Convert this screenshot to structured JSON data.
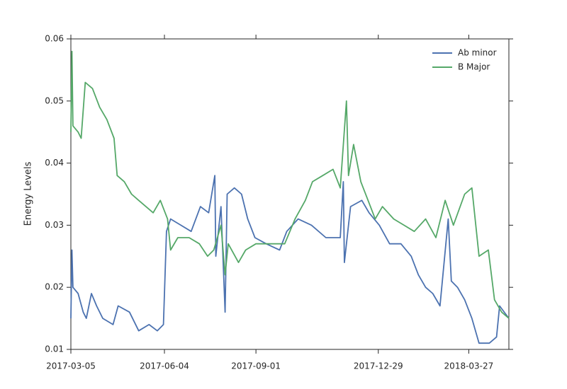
{
  "chart_data": {
    "type": "line",
    "ylabel": "Energy Levels",
    "xlim": [
      "2017-03-05",
      "2018-05-05"
    ],
    "xticks": [
      "2017-03-05",
      "2017-06-04",
      "2017-09-01",
      "2017-12-29",
      "2018-03-27"
    ],
    "ylim": [
      0.01,
      0.06
    ],
    "yticks": [
      0.01,
      0.02,
      0.03,
      0.04,
      0.05,
      0.06
    ],
    "legend": "upper right",
    "series": [
      {
        "name": "Ab minor",
        "color": "#4c72b0",
        "x": [
          "2017-03-05",
          "2017-03-06",
          "2017-03-07",
          "2017-03-12",
          "2017-03-17",
          "2017-03-20",
          "2017-03-25",
          "2017-03-30",
          "2017-04-05",
          "2017-04-15",
          "2017-04-20",
          "2017-05-01",
          "2017-05-10",
          "2017-05-20",
          "2017-05-28",
          "2017-06-03",
          "2017-06-06",
          "2017-06-10",
          "2017-06-20",
          "2017-06-30",
          "2017-07-09",
          "2017-07-17",
          "2017-07-23",
          "2017-07-24",
          "2017-07-29",
          "2017-08-02",
          "2017-08-04",
          "2017-08-11",
          "2017-08-18",
          "2017-08-24",
          "2017-08-31",
          "2017-09-11",
          "2017-09-24",
          "2017-10-01",
          "2017-10-12",
          "2017-10-25",
          "2017-11-08",
          "2017-11-22",
          "2017-11-25",
          "2017-11-26",
          "2017-12-02",
          "2017-12-13",
          "2017-12-20",
          "2017-12-30",
          "2018-01-09",
          "2018-01-20",
          "2018-01-30",
          "2018-02-06",
          "2018-02-13",
          "2018-02-20",
          "2018-02-27",
          "2018-03-07",
          "2018-03-10",
          "2018-03-16",
          "2018-03-23",
          "2018-03-30",
          "2018-04-06",
          "2018-04-16",
          "2018-04-23",
          "2018-04-26",
          "2018-05-05"
        ],
        "values": [
          0.015,
          0.026,
          0.02,
          0.019,
          0.016,
          0.015,
          0.019,
          0.017,
          0.015,
          0.014,
          0.017,
          0.016,
          0.013,
          0.014,
          0.013,
          0.014,
          0.029,
          0.031,
          0.03,
          0.029,
          0.033,
          0.032,
          0.038,
          0.025,
          0.033,
          0.016,
          0.035,
          0.036,
          0.035,
          0.031,
          0.028,
          0.027,
          0.026,
          0.029,
          0.031,
          0.03,
          0.028,
          0.028,
          0.037,
          0.024,
          0.033,
          0.034,
          0.032,
          0.03,
          0.027,
          0.027,
          0.025,
          0.022,
          0.02,
          0.019,
          0.017,
          0.031,
          0.021,
          0.02,
          0.018,
          0.015,
          0.011,
          0.011,
          0.012,
          0.017,
          0.015
        ]
      },
      {
        "name": "B Major",
        "color": "#55a868",
        "x": [
          "2017-03-05",
          "2017-03-06",
          "2017-03-07",
          "2017-03-12",
          "2017-03-15",
          "2017-03-19",
          "2017-03-26",
          "2017-04-02",
          "2017-04-09",
          "2017-04-16",
          "2017-04-19",
          "2017-04-26",
          "2017-05-03",
          "2017-05-10",
          "2017-05-17",
          "2017-05-24",
          "2017-05-31",
          "2017-06-07",
          "2017-06-10",
          "2017-06-17",
          "2017-06-28",
          "2017-07-08",
          "2017-07-16",
          "2017-07-22",
          "2017-07-29",
          "2017-08-02",
          "2017-08-05",
          "2017-08-15",
          "2017-08-22",
          "2017-09-01",
          "2017-09-15",
          "2017-09-29",
          "2017-10-09",
          "2017-10-19",
          "2017-10-26",
          "2017-11-05",
          "2017-11-15",
          "2017-11-22",
          "2017-11-28",
          "2017-11-30",
          "2017-12-05",
          "2017-12-12",
          "2017-12-19",
          "2017-12-26",
          "2018-01-02",
          "2018-01-13",
          "2018-01-23",
          "2018-02-02",
          "2018-02-13",
          "2018-02-23",
          "2018-03-04",
          "2018-03-12",
          "2018-03-23",
          "2018-03-30",
          "2018-04-06",
          "2018-04-15",
          "2018-04-21",
          "2018-04-28",
          "2018-05-05"
        ],
        "values": [
          0.045,
          0.058,
          0.046,
          0.045,
          0.044,
          0.053,
          0.052,
          0.049,
          0.047,
          0.044,
          0.038,
          0.037,
          0.035,
          0.034,
          0.033,
          0.032,
          0.034,
          0.031,
          0.026,
          0.028,
          0.028,
          0.027,
          0.025,
          0.026,
          0.03,
          0.022,
          0.027,
          0.024,
          0.026,
          0.027,
          0.027,
          0.027,
          0.031,
          0.034,
          0.037,
          0.038,
          0.039,
          0.036,
          0.05,
          0.038,
          0.043,
          0.037,
          0.034,
          0.031,
          0.033,
          0.031,
          0.03,
          0.029,
          0.031,
          0.028,
          0.034,
          0.03,
          0.035,
          0.036,
          0.025,
          0.026,
          0.018,
          0.016,
          0.015
        ]
      }
    ]
  }
}
